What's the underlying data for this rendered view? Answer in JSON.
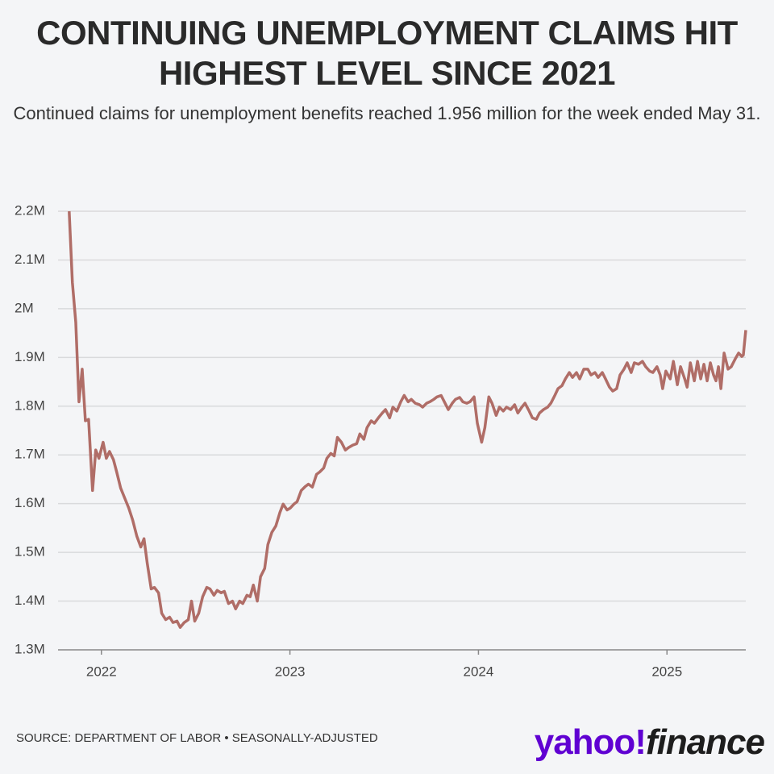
{
  "chart_data": {
    "type": "line",
    "title": "CONTINUING UNEMPLOYMENT CLAIMS HIT HIGHEST LEVEL SINCE 2021",
    "subtitle": "Continued claims for unemployment benefits reached 1.956 million for the week ended May 31.",
    "source": "SOURCE: DEPARTMENT OF LABOR • SEASONALLY-ADJUSTED",
    "logo": {
      "yahoo": "yahoo!",
      "finance": "finance"
    },
    "grid": true,
    "xlim": [
      2021.77,
      2025.418
    ],
    "xticks": [
      2022,
      2023,
      2024,
      2025
    ],
    "ylim": [
      1300000,
      2200000
    ],
    "yticks": [
      {
        "value": 1300000,
        "label": "1.3M"
      },
      {
        "value": 1400000,
        "label": "1.4M"
      },
      {
        "value": 1500000,
        "label": "1.5M"
      },
      {
        "value": 1600000,
        "label": "1.6M"
      },
      {
        "value": 1700000,
        "label": "1.7M"
      },
      {
        "value": 1800000,
        "label": "1.8M"
      },
      {
        "value": 1900000,
        "label": "1.9M"
      },
      {
        "value": 2000000,
        "label": "2M"
      },
      {
        "value": 2100000,
        "label": "2.1M"
      },
      {
        "value": 2200000,
        "label": "2.2M"
      }
    ],
    "x": [
      2021.829,
      2021.846,
      2021.864,
      2021.881,
      2021.898,
      2021.915,
      2021.932,
      2021.953,
      2021.97,
      2021.987,
      2022.009,
      2022.026,
      2022.043,
      2022.064,
      2022.081,
      2022.102,
      2022.124,
      2022.145,
      2022.166,
      2022.188,
      2022.209,
      2022.226,
      2022.243,
      2022.264,
      2022.281,
      2022.303,
      2022.32,
      2022.341,
      2022.362,
      2022.38,
      2022.401,
      2022.418,
      2022.439,
      2022.461,
      2022.478,
      2022.495,
      2022.516,
      2022.537,
      2022.559,
      2022.576,
      2022.597,
      2022.614,
      2022.635,
      2022.652,
      2022.674,
      2022.695,
      2022.712,
      2022.733,
      2022.75,
      2022.772,
      2022.789,
      2022.806,
      2022.827,
      2022.844,
      2022.866,
      2022.883,
      2022.904,
      2022.925,
      2022.947,
      2022.964,
      2022.985,
      2023.002,
      2023.021,
      2023.038,
      2023.06,
      2023.081,
      2023.098,
      2023.119,
      2023.141,
      2023.158,
      2023.179,
      2023.196,
      2023.217,
      2023.235,
      2023.252,
      2023.273,
      2023.294,
      2023.311,
      2023.333,
      2023.354,
      2023.371,
      2023.392,
      2023.409,
      2023.431,
      2023.448,
      2023.469,
      2023.49,
      2023.507,
      2023.529,
      2023.546,
      2023.567,
      2023.588,
      2023.606,
      2023.627,
      2023.644,
      2023.665,
      2023.687,
      2023.704,
      2023.725,
      2023.742,
      2023.763,
      2023.78,
      2023.802,
      2023.819,
      2023.84,
      2023.861,
      2023.878,
      2023.9,
      2023.917,
      2023.938,
      2023.955,
      2023.977,
      2023.994,
      2024.017,
      2024.034,
      2024.055,
      2024.072,
      2024.094,
      2024.111,
      2024.132,
      2024.149,
      2024.171,
      2024.192,
      2024.209,
      2024.23,
      2024.247,
      2024.269,
      2024.286,
      2024.307,
      2024.324,
      2024.345,
      2024.367,
      2024.384,
      2024.405,
      2024.422,
      2024.443,
      2024.461,
      2024.482,
      2024.499,
      2024.52,
      2024.537,
      2024.559,
      2024.58,
      2024.597,
      2024.618,
      2024.635,
      2024.657,
      2024.674,
      2024.695,
      2024.712,
      2024.733,
      2024.751,
      2024.772,
      2024.789,
      2024.81,
      2024.827,
      2024.849,
      2024.87,
      2024.887,
      2024.908,
      2024.925,
      2024.947,
      2024.964,
      2024.977,
      2024.994,
      2025.017,
      2025.034,
      2025.055,
      2025.072,
      2025.094,
      2025.107,
      2025.124,
      2025.145,
      2025.162,
      2025.179,
      2025.196,
      2025.213,
      2025.23,
      2025.247,
      2025.26,
      2025.273,
      2025.286,
      2025.303,
      2025.324,
      2025.341,
      2025.362,
      2025.38,
      2025.397,
      2025.405,
      2025.418
    ],
    "series": [
      {
        "color": "#b06d67",
        "values": [
          2200000,
          2054000,
          1972000,
          1809000,
          1876000,
          1770000,
          1773000,
          1627000,
          1710000,
          1693000,
          1726000,
          1693000,
          1707000,
          1690000,
          1665000,
          1632000,
          1611000,
          1591000,
          1566000,
          1533000,
          1511000,
          1528000,
          1478000,
          1425000,
          1428000,
          1417000,
          1375000,
          1362000,
          1367000,
          1356000,
          1359000,
          1346000,
          1356000,
          1362000,
          1400000,
          1359000,
          1375000,
          1409000,
          1428000,
          1425000,
          1412000,
          1422000,
          1417000,
          1420000,
          1395000,
          1400000,
          1384000,
          1400000,
          1395000,
          1412000,
          1409000,
          1433000,
          1400000,
          1450000,
          1467000,
          1516000,
          1541000,
          1554000,
          1582000,
          1599000,
          1587000,
          1591000,
          1599000,
          1604000,
          1627000,
          1635000,
          1640000,
          1634000,
          1660000,
          1665000,
          1673000,
          1693000,
          1703000,
          1698000,
          1736000,
          1726000,
          1710000,
          1715000,
          1720000,
          1723000,
          1743000,
          1732000,
          1756000,
          1770000,
          1765000,
          1776000,
          1786000,
          1793000,
          1776000,
          1798000,
          1790000,
          1809000,
          1822000,
          1809000,
          1814000,
          1806000,
          1803000,
          1798000,
          1806000,
          1809000,
          1814000,
          1819000,
          1822000,
          1809000,
          1793000,
          1806000,
          1814000,
          1818000,
          1809000,
          1806000,
          1809000,
          1819000,
          1765000,
          1726000,
          1756000,
          1819000,
          1806000,
          1781000,
          1798000,
          1790000,
          1798000,
          1793000,
          1803000,
          1786000,
          1798000,
          1806000,
          1790000,
          1776000,
          1773000,
          1786000,
          1793000,
          1798000,
          1806000,
          1822000,
          1836000,
          1842000,
          1856000,
          1869000,
          1859000,
          1869000,
          1856000,
          1876000,
          1876000,
          1864000,
          1869000,
          1859000,
          1869000,
          1856000,
          1839000,
          1831000,
          1836000,
          1864000,
          1876000,
          1889000,
          1869000,
          1889000,
          1886000,
          1892000,
          1881000,
          1872000,
          1869000,
          1881000,
          1864000,
          1836000,
          1872000,
          1856000,
          1892000,
          1844000,
          1881000,
          1856000,
          1839000,
          1889000,
          1852000,
          1892000,
          1856000,
          1886000,
          1852000,
          1889000,
          1864000,
          1852000,
          1881000,
          1836000,
          1909000,
          1876000,
          1881000,
          1897000,
          1909000,
          1902000,
          1905000,
          1956000
        ]
      }
    ]
  }
}
